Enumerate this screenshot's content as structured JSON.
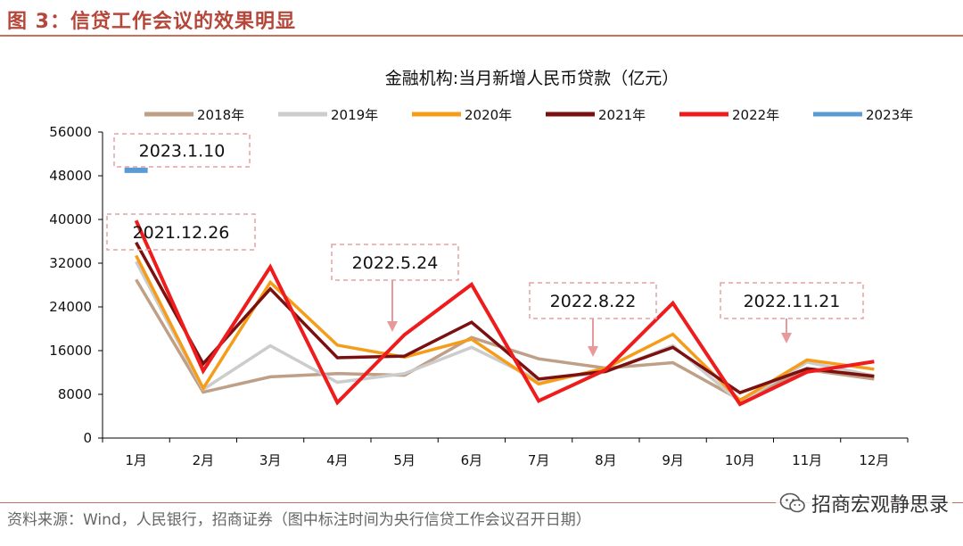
{
  "figure": {
    "title": "图 3：信贷工作会议的效果明显",
    "source": "资料来源：Wind，人民银行，招商证券（图中标注时间为央行信贷工作会议召开日期）",
    "watermark": "招商宏观静思录"
  },
  "chart_data": {
    "type": "line",
    "title": "金融机构:当月新增人民币贷款（亿元）",
    "categories": [
      "1月",
      "2月",
      "3月",
      "4月",
      "5月",
      "6月",
      "7月",
      "8月",
      "9月",
      "10月",
      "11月",
      "12月"
    ],
    "ylim": [
      0,
      56000
    ],
    "yticks": [
      0,
      8000,
      16000,
      24000,
      32000,
      40000,
      48000,
      56000
    ],
    "grid": false,
    "legend_position": "top",
    "series": [
      {
        "name": "2018年",
        "color": "#bf9f86",
        "values": [
          29000,
          8400,
          11200,
          11800,
          11500,
          18400,
          14500,
          12800,
          13800,
          7000,
          12500,
          10800
        ]
      },
      {
        "name": "2019年",
        "color": "#cccccc",
        "values": [
          32300,
          8900,
          16900,
          10200,
          11800,
          16600,
          10600,
          12100,
          16900,
          6600,
          13900,
          11400
        ]
      },
      {
        "name": "2020年",
        "color": "#f59c1a",
        "values": [
          33400,
          9100,
          28500,
          17000,
          14800,
          18100,
          9900,
          12800,
          19000,
          6900,
          14300,
          12600
        ]
      },
      {
        "name": "2021年",
        "color": "#7a1010",
        "values": [
          35800,
          13600,
          27300,
          14700,
          15000,
          21200,
          10800,
          12200,
          16600,
          8300,
          12700,
          11300
        ]
      },
      {
        "name": "2022年",
        "color": "#ee1c1c",
        "values": [
          39800,
          12300,
          31300,
          6500,
          18900,
          28100,
          6800,
          12500,
          24700,
          6200,
          12100,
          14000
        ]
      },
      {
        "name": "2023年",
        "color": "#5b9bd5",
        "values": [
          49000,
          null,
          null,
          null,
          null,
          null,
          null,
          null,
          null,
          null,
          null,
          null
        ]
      }
    ],
    "annotations": [
      {
        "label": "2023.1.10"
      },
      {
        "label": "2021.12.26"
      },
      {
        "label": "2022.5.24"
      },
      {
        "label": "2022.8.22"
      },
      {
        "label": "2022.11.21"
      }
    ]
  }
}
